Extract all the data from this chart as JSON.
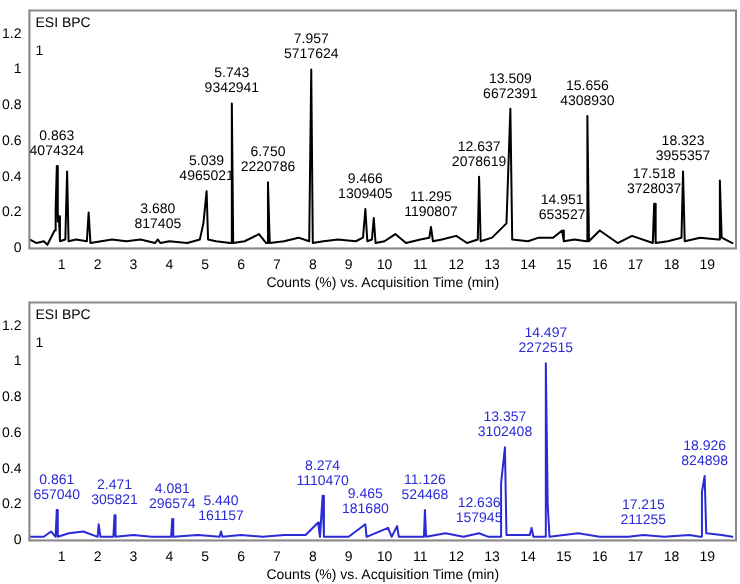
{
  "chart_data": [
    {
      "type": "line",
      "title": "ESI BPC",
      "xlabel": "Counts (%) vs. Acquisition Time (min)",
      "xlim": [
        0.1,
        19.8
      ],
      "xticks": [
        1,
        2,
        3,
        4,
        5,
        6,
        7,
        8,
        9,
        10,
        11,
        12,
        13,
        14,
        15,
        16,
        17,
        18,
        19
      ],
      "ylim": [
        0,
        1.33
      ],
      "yticks": [
        0,
        0.2,
        0.4,
        0.6,
        0.8,
        1,
        1.2
      ],
      "grid": false,
      "legend": false,
      "marker": "none",
      "series": [
        {
          "color": "#000000",
          "x": [
            0.1,
            0.3,
            0.5,
            0.6,
            0.8,
            0.83,
            0.863,
            0.89,
            0.92,
            0.95,
            1.1,
            1.15,
            1.19,
            1.4,
            1.7,
            1.75,
            1.8,
            2.1,
            2.4,
            2.8,
            3.2,
            3.6,
            3.68,
            3.75,
            4.0,
            4.5,
            4.85,
            4.95,
            5.039,
            5.08,
            5.3,
            5.7,
            5.743,
            5.78,
            6.1,
            6.5,
            6.7,
            6.75,
            6.8,
            7.2,
            7.6,
            7.9,
            7.957,
            8.0,
            8.3,
            8.7,
            9.2,
            9.4,
            9.466,
            9.52,
            9.65,
            9.7,
            9.75,
            10.0,
            10.3,
            10.6,
            11.0,
            11.25,
            11.295,
            11.35,
            11.6,
            12.0,
            12.3,
            12.6,
            12.637,
            12.68,
            13.0,
            13.4,
            13.509,
            13.56,
            14.0,
            14.3,
            14.7,
            14.951,
            15.0,
            15.3,
            15.62,
            15.656,
            15.7,
            16.0,
            16.5,
            16.9,
            17.48,
            17.518,
            17.56,
            17.9,
            18.28,
            18.323,
            18.37,
            18.8,
            19.3,
            19.35,
            19.4,
            19.7
          ],
          "values": [
            0.05,
            0.03,
            0.04,
            0.02,
            0.1,
            0.22,
            0.46,
            0.15,
            0.18,
            0.04,
            0.05,
            0.43,
            0.04,
            0.05,
            0.04,
            0.2,
            0.03,
            0.04,
            0.05,
            0.04,
            0.05,
            0.03,
            0.05,
            0.03,
            0.04,
            0.03,
            0.05,
            0.14,
            0.32,
            0.05,
            0.04,
            0.03,
            0.81,
            0.03,
            0.04,
            0.08,
            0.03,
            0.37,
            0.03,
            0.04,
            0.06,
            0.04,
            1.0,
            0.03,
            0.04,
            0.05,
            0.04,
            0.06,
            0.22,
            0.04,
            0.05,
            0.17,
            0.03,
            0.04,
            0.08,
            0.03,
            0.05,
            0.06,
            0.12,
            0.04,
            0.05,
            0.07,
            0.03,
            0.05,
            0.4,
            0.04,
            0.06,
            0.14,
            0.78,
            0.05,
            0.04,
            0.06,
            0.06,
            0.1,
            0.04,
            0.05,
            0.04,
            0.74,
            0.04,
            0.1,
            0.03,
            0.07,
            0.03,
            0.25,
            0.03,
            0.04,
            0.06,
            0.43,
            0.04,
            0.06,
            0.05,
            0.38,
            0.06,
            0.03
          ]
        }
      ],
      "annotations": [
        "1",
        {
          "text": "0.863\n4074324",
          "x": 0.863,
          "y": 0.46
        },
        {
          "text": "3.680\n817405",
          "x": 3.68,
          "y": 0.05
        },
        {
          "text": "5.039\n4965021",
          "x": 5.039,
          "y": 0.32
        },
        {
          "text": "5.743\n9342941",
          "x": 5.743,
          "y": 0.81
        },
        {
          "text": "6.750\n2220786",
          "x": 6.75,
          "y": 0.37
        },
        {
          "text": "7.957\n5717624",
          "x": 7.957,
          "y": 1.0
        },
        {
          "text": "9.466\n1309405",
          "x": 9.466,
          "y": 0.22
        },
        {
          "text": "11.295\n1190807",
          "x": 11.295,
          "y": 0.12
        },
        {
          "text": "12.637\n2078619",
          "x": 12.637,
          "y": 0.4
        },
        {
          "text": "13.509\n6672391",
          "x": 13.509,
          "y": 0.78
        },
        {
          "text": "14.951\n653527",
          "x": 14.951,
          "y": 0.1
        },
        {
          "text": "15.656\n4308930",
          "x": 15.656,
          "y": 0.74
        },
        {
          "text": "17.518\n3728037",
          "x": 17.518,
          "y": 0.25
        },
        {
          "text": "18.323\n3955357",
          "x": 18.323,
          "y": 0.43
        }
      ]
    },
    {
      "type": "line",
      "title": "ESI BPC",
      "xlabel": "Counts (%) vs. Acquisition Time (min)",
      "xlim": [
        0.1,
        19.8
      ],
      "xticks": [
        1,
        2,
        3,
        4,
        5,
        6,
        7,
        8,
        9,
        10,
        11,
        12,
        13,
        14,
        15,
        16,
        17,
        18,
        19
      ],
      "ylim": [
        0,
        1.33
      ],
      "yticks": [
        0,
        0.2,
        0.4,
        0.6,
        0.8,
        1,
        1.2
      ],
      "grid": false,
      "legend": false,
      "marker": "none",
      "series": [
        {
          "color": "#2a2ad6",
          "x": [
            0.1,
            0.5,
            0.7,
            0.83,
            0.861,
            0.89,
            1.2,
            1.6,
            2.0,
            2.03,
            2.08,
            2.44,
            2.471,
            2.5,
            3.0,
            3.5,
            4.05,
            4.081,
            4.11,
            4.8,
            5.4,
            5.44,
            5.48,
            6.0,
            6.6,
            7.2,
            7.8,
            8.15,
            8.2,
            8.274,
            8.31,
            9.0,
            9.465,
            9.5,
            10.1,
            10.2,
            10.35,
            10.4,
            11.1,
            11.126,
            11.16,
            11.7,
            12.2,
            12.636,
            12.9,
            13.22,
            13.25,
            13.357,
            13.4,
            14.05,
            14.1,
            14.15,
            14.46,
            14.497,
            14.55,
            14.6,
            15.4,
            16.0,
            16.8,
            17.215,
            17.8,
            18.5,
            18.8,
            18.85,
            18.926,
            18.97,
            19.4,
            19.7
          ],
          "values": [
            0.02,
            0.02,
            0.05,
            0.02,
            0.17,
            0.02,
            0.04,
            0.05,
            0.02,
            0.09,
            0.02,
            0.02,
            0.14,
            0.02,
            0.03,
            0.02,
            0.02,
            0.12,
            0.02,
            0.03,
            0.02,
            0.05,
            0.02,
            0.03,
            0.02,
            0.03,
            0.03,
            0.1,
            0.02,
            0.25,
            0.02,
            0.02,
            0.09,
            0.02,
            0.07,
            0.02,
            0.08,
            0.02,
            0.02,
            0.17,
            0.02,
            0.04,
            0.02,
            0.04,
            0.02,
            0.02,
            0.32,
            0.52,
            0.03,
            0.03,
            0.07,
            0.02,
            0.02,
            0.99,
            0.2,
            0.02,
            0.04,
            0.02,
            0.02,
            0.03,
            0.02,
            0.03,
            0.02,
            0.27,
            0.36,
            0.04,
            0.03,
            0.02
          ]
        }
      ],
      "annotations": [
        "1",
        {
          "text": "0.861\n657040",
          "x": 0.861,
          "y": 0.17
        },
        {
          "text": "2.471\n305821",
          "x": 2.471,
          "y": 0.14
        },
        {
          "text": "4.081\n296574",
          "x": 4.081,
          "y": 0.12
        },
        {
          "text": "5.440\n161157",
          "x": 5.44,
          "y": 0.05
        },
        {
          "text": "8.274\n1110470",
          "x": 8.274,
          "y": 0.25
        },
        {
          "text": "9.465\n181680",
          "x": 9.465,
          "y": 0.09
        },
        {
          "text": "11.126\n524468",
          "x": 11.126,
          "y": 0.17
        },
        {
          "text": "12.636\n157945",
          "x": 12.636,
          "y": 0.04
        },
        {
          "text": "13.357\n3102408",
          "x": 13.357,
          "y": 0.52
        },
        {
          "text": "14.497\n2272515",
          "x": 14.497,
          "y": 0.99
        },
        {
          "text": "17.215\n211255",
          "x": 17.215,
          "y": 0.03
        },
        {
          "text": "18.926\n824898",
          "x": 18.926,
          "y": 0.36
        }
      ]
    }
  ]
}
